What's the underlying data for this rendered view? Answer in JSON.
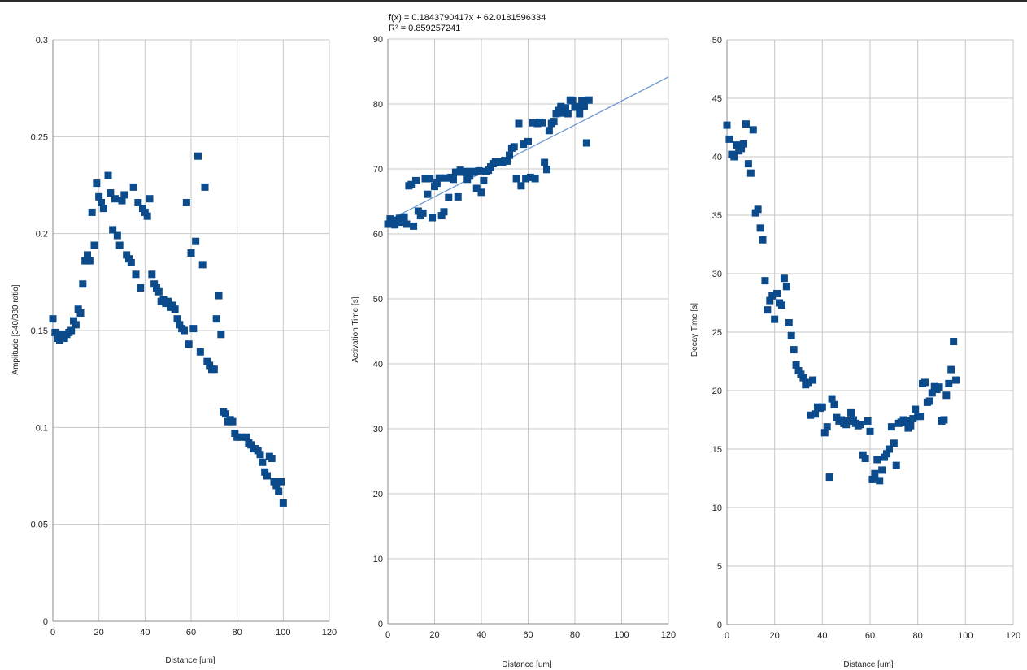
{
  "colors": {
    "marker": "#0b4a8b",
    "trendline": "#6d9ad0",
    "grid": "#c8c8c8",
    "axis": "#8a8a8a"
  },
  "chart_data": [
    {
      "type": "scatter",
      "title": "",
      "xlabel": "Distance [um]",
      "ylabel": "Amplitude [340/380 ratio]",
      "xlim": [
        0,
        120
      ],
      "ylim": [
        0,
        0.3
      ],
      "xticks": [
        "0",
        "20",
        "40",
        "60",
        "80",
        "100",
        "120"
      ],
      "yticks": [
        "0",
        "0.05",
        "0.1",
        "0.15",
        "0.2",
        "0.25",
        "0.3"
      ],
      "grid": true,
      "marker": "square",
      "points": [
        [
          0,
          0.156
        ],
        [
          1,
          0.149
        ],
        [
          2,
          0.146
        ],
        [
          3,
          0.145
        ],
        [
          4,
          0.148
        ],
        [
          5,
          0.146
        ],
        [
          6,
          0.148
        ],
        [
          7,
          0.149
        ],
        [
          8,
          0.15
        ],
        [
          9,
          0.155
        ],
        [
          10,
          0.153
        ],
        [
          11,
          0.161
        ],
        [
          12,
          0.159
        ],
        [
          13,
          0.174
        ],
        [
          14,
          0.186
        ],
        [
          15,
          0.189
        ],
        [
          16,
          0.186
        ],
        [
          17,
          0.211
        ],
        [
          18,
          0.194
        ],
        [
          19,
          0.226
        ],
        [
          20,
          0.219
        ],
        [
          21,
          0.216
        ],
        [
          22,
          0.213
        ],
        [
          24,
          0.23
        ],
        [
          25,
          0.221
        ],
        [
          26,
          0.202
        ],
        [
          27,
          0.218
        ],
        [
          28,
          0.199
        ],
        [
          29,
          0.194
        ],
        [
          30,
          0.217
        ],
        [
          31,
          0.22
        ],
        [
          32,
          0.189
        ],
        [
          33,
          0.187
        ],
        [
          34,
          0.185
        ],
        [
          35,
          0.224
        ],
        [
          36,
          0.179
        ],
        [
          37,
          0.216
        ],
        [
          38,
          0.172
        ],
        [
          39,
          0.213
        ],
        [
          40,
          0.211
        ],
        [
          41,
          0.209
        ],
        [
          42,
          0.218
        ],
        [
          43,
          0.179
        ],
        [
          44,
          0.174
        ],
        [
          45,
          0.172
        ],
        [
          46,
          0.17
        ],
        [
          47,
          0.165
        ],
        [
          48,
          0.166
        ],
        [
          49,
          0.164
        ],
        [
          50,
          0.165
        ],
        [
          51,
          0.162
        ],
        [
          52,
          0.163
        ],
        [
          53,
          0.161
        ],
        [
          54,
          0.156
        ],
        [
          55,
          0.153
        ],
        [
          56,
          0.151
        ],
        [
          57,
          0.15
        ],
        [
          58,
          0.216
        ],
        [
          59,
          0.143
        ],
        [
          60,
          0.19
        ],
        [
          61,
          0.151
        ],
        [
          62,
          0.196
        ],
        [
          63,
          0.24
        ],
        [
          64,
          0.139
        ],
        [
          65,
          0.184
        ],
        [
          66,
          0.224
        ],
        [
          67,
          0.134
        ],
        [
          68,
          0.132
        ],
        [
          69,
          0.13
        ],
        [
          70,
          0.13
        ],
        [
          71,
          0.156
        ],
        [
          72,
          0.168
        ],
        [
          73,
          0.148
        ],
        [
          74,
          0.108
        ],
        [
          75,
          0.107
        ],
        [
          76,
          0.103
        ],
        [
          77,
          0.104
        ],
        [
          78,
          0.103
        ],
        [
          79,
          0.097
        ],
        [
          80,
          0.095
        ],
        [
          82,
          0.095
        ],
        [
          84,
          0.095
        ],
        [
          85,
          0.092
        ],
        [
          86,
          0.091
        ],
        [
          87,
          0.089
        ],
        [
          88,
          0.089
        ],
        [
          89,
          0.088
        ],
        [
          90,
          0.086
        ],
        [
          91,
          0.082
        ],
        [
          92,
          0.077
        ],
        [
          93,
          0.075
        ],
        [
          94,
          0.085
        ],
        [
          95,
          0.084
        ],
        [
          96,
          0.072
        ],
        [
          97,
          0.07
        ],
        [
          98,
          0.067
        ],
        [
          99,
          0.072
        ],
        [
          100,
          0.061
        ]
      ]
    },
    {
      "type": "scatter",
      "title": "",
      "xlabel": "Distance [um]",
      "ylabel": "Activation Time [s]",
      "xlim": [
        0,
        120
      ],
      "ylim": [
        0,
        90
      ],
      "xticks": [
        "0",
        "20",
        "40",
        "60",
        "80",
        "100",
        "120"
      ],
      "yticks": [
        "0",
        "10",
        "20",
        "30",
        "40",
        "50",
        "60",
        "70",
        "80",
        "90"
      ],
      "grid": true,
      "marker": "square",
      "trendline": {
        "type": "linear",
        "slope": 0.1843790417,
        "intercept": 62.0181596334,
        "equation": "f(x) = 0.1843790417x + 62.0181596334",
        "r_squared": "R² = 0.859257241"
      },
      "points": [
        [
          0,
          61.5
        ],
        [
          1,
          62.3
        ],
        [
          2,
          62.1
        ],
        [
          3,
          61.4
        ],
        [
          4,
          62.0
        ],
        [
          5,
          62.4
        ],
        [
          6,
          61.8
        ],
        [
          7,
          62.6
        ],
        [
          8,
          61.5
        ],
        [
          9,
          67.4
        ],
        [
          10,
          67.6
        ],
        [
          11,
          61.2
        ],
        [
          12,
          68.2
        ],
        [
          13,
          63.5
        ],
        [
          14,
          62.8
        ],
        [
          15,
          63.2
        ],
        [
          16,
          68.5
        ],
        [
          17,
          66.1
        ],
        [
          18,
          68.5
        ],
        [
          19,
          62.5
        ],
        [
          20,
          67.3
        ],
        [
          21,
          67.8
        ],
        [
          22,
          68.6
        ],
        [
          23,
          62.8
        ],
        [
          24,
          63.4
        ],
        [
          25,
          68.6
        ],
        [
          26,
          65.6
        ],
        [
          27,
          68.7
        ],
        [
          28,
          68.4
        ],
        [
          29,
          69.5
        ],
        [
          30,
          65.7
        ],
        [
          31,
          69.8
        ],
        [
          32,
          69.5
        ],
        [
          33,
          69.6
        ],
        [
          34,
          68.4
        ],
        [
          35,
          68.9
        ],
        [
          36,
          69.6
        ],
        [
          37,
          69.5
        ],
        [
          38,
          67.0
        ],
        [
          39,
          69.7
        ],
        [
          40,
          66.4
        ],
        [
          41,
          68.2
        ],
        [
          42,
          69.6
        ],
        [
          43,
          69.8
        ],
        [
          44,
          70.3
        ],
        [
          45,
          70.8
        ],
        [
          46,
          71.1
        ],
        [
          47,
          71.0
        ],
        [
          48,
          71.1
        ],
        [
          49,
          71.0
        ],
        [
          50,
          71.3
        ],
        [
          51,
          71.2
        ],
        [
          52,
          72.1
        ],
        [
          53,
          73.2
        ],
        [
          54,
          73.4
        ],
        [
          55,
          68.5
        ],
        [
          56,
          77.0
        ],
        [
          57,
          67.4
        ],
        [
          58,
          73.8
        ],
        [
          59,
          68.5
        ],
        [
          60,
          74.2
        ],
        [
          61,
          68.7
        ],
        [
          62,
          77.1
        ],
        [
          63,
          68.5
        ],
        [
          64,
          77.0
        ],
        [
          65,
          77.2
        ],
        [
          66,
          77.1
        ],
        [
          67,
          71.0
        ],
        [
          68,
          69.9
        ],
        [
          69,
          75.9
        ],
        [
          70,
          77.0
        ],
        [
          71,
          77.3
        ],
        [
          72,
          78.5
        ],
        [
          73,
          79.0
        ],
        [
          74,
          79.6
        ],
        [
          75,
          78.6
        ],
        [
          76,
          79.4
        ],
        [
          77,
          78.5
        ],
        [
          78,
          80.6
        ],
        [
          79,
          80.5
        ],
        [
          80,
          79.5
        ],
        [
          81,
          79.6
        ],
        [
          82,
          78.5
        ],
        [
          83,
          80.5
        ],
        [
          84,
          79.6
        ],
        [
          85,
          74.0
        ],
        [
          86,
          80.6
        ]
      ]
    },
    {
      "type": "scatter",
      "title": "",
      "xlabel": "Distance [um]",
      "ylabel": "Decay Time [s]",
      "xlim": [
        0,
        120
      ],
      "ylim": [
        0,
        50
      ],
      "xticks": [
        "0",
        "20",
        "40",
        "60",
        "80",
        "100",
        "120"
      ],
      "yticks": [
        "0",
        "5",
        "10",
        "15",
        "20",
        "25",
        "30",
        "35",
        "40",
        "45",
        "50"
      ],
      "grid": true,
      "marker": "square",
      "points": [
        [
          0,
          42.7
        ],
        [
          1,
          41.5
        ],
        [
          2,
          40.2
        ],
        [
          3,
          40.0
        ],
        [
          4,
          41.0
        ],
        [
          5,
          40.5
        ],
        [
          6,
          40.7
        ],
        [
          7,
          41.1
        ],
        [
          8,
          42.8
        ],
        [
          9,
          39.4
        ],
        [
          10,
          38.6
        ],
        [
          11,
          42.3
        ],
        [
          12,
          35.2
        ],
        [
          13,
          35.5
        ],
        [
          14,
          33.9
        ],
        [
          15,
          32.9
        ],
        [
          16,
          29.4
        ],
        [
          17,
          26.9
        ],
        [
          18,
          27.7
        ],
        [
          19,
          28.1
        ],
        [
          20,
          26.1
        ],
        [
          21,
          28.3
        ],
        [
          22,
          27.5
        ],
        [
          23,
          27.3
        ],
        [
          24,
          29.6
        ],
        [
          25,
          28.9
        ],
        [
          26,
          25.8
        ],
        [
          27,
          24.7
        ],
        [
          28,
          23.5
        ],
        [
          29,
          22.2
        ],
        [
          30,
          21.7
        ],
        [
          31,
          21.4
        ],
        [
          32,
          21.1
        ],
        [
          33,
          20.5
        ],
        [
          34,
          20.7
        ],
        [
          35,
          17.9
        ],
        [
          36,
          20.9
        ],
        [
          37,
          18.0
        ],
        [
          38,
          18.6
        ],
        [
          39,
          18.5
        ],
        [
          40,
          18.6
        ],
        [
          41,
          16.4
        ],
        [
          42,
          16.9
        ],
        [
          43,
          12.6
        ],
        [
          44,
          19.3
        ],
        [
          45,
          18.8
        ],
        [
          46,
          17.7
        ],
        [
          47,
          17.4
        ],
        [
          48,
          17.5
        ],
        [
          49,
          17.2
        ],
        [
          50,
          17.1
        ],
        [
          51,
          17.4
        ],
        [
          52,
          18.1
        ],
        [
          53,
          17.5
        ],
        [
          54,
          17.2
        ],
        [
          55,
          17.0
        ],
        [
          56,
          17.1
        ],
        [
          57,
          14.5
        ],
        [
          58,
          14.2
        ],
        [
          59,
          17.4
        ],
        [
          60,
          16.5
        ],
        [
          61,
          12.4
        ],
        [
          62,
          12.9
        ],
        [
          63,
          14.1
        ],
        [
          64,
          12.3
        ],
        [
          65,
          13.2
        ],
        [
          66,
          14.3
        ],
        [
          67,
          14.6
        ],
        [
          68,
          15.0
        ],
        [
          69,
          16.9
        ],
        [
          70,
          15.5
        ],
        [
          71,
          13.6
        ],
        [
          72,
          17.2
        ],
        [
          73,
          17.3
        ],
        [
          74,
          17.5
        ],
        [
          75,
          17.4
        ],
        [
          76,
          16.8
        ],
        [
          77,
          17.0
        ],
        [
          78,
          17.6
        ],
        [
          79,
          18.4
        ],
        [
          80,
          17.8
        ],
        [
          81,
          17.8
        ],
        [
          82,
          20.6
        ],
        [
          83,
          20.7
        ],
        [
          84,
          19.0
        ],
        [
          85,
          19.1
        ],
        [
          86,
          19.8
        ],
        [
          87,
          20.4
        ],
        [
          88,
          20.1
        ],
        [
          89,
          20.3
        ],
        [
          90,
          17.4
        ],
        [
          91,
          17.5
        ],
        [
          92,
          19.6
        ],
        [
          93,
          20.6
        ],
        [
          94,
          21.8
        ],
        [
          95,
          24.2
        ],
        [
          96,
          20.9
        ]
      ]
    }
  ]
}
